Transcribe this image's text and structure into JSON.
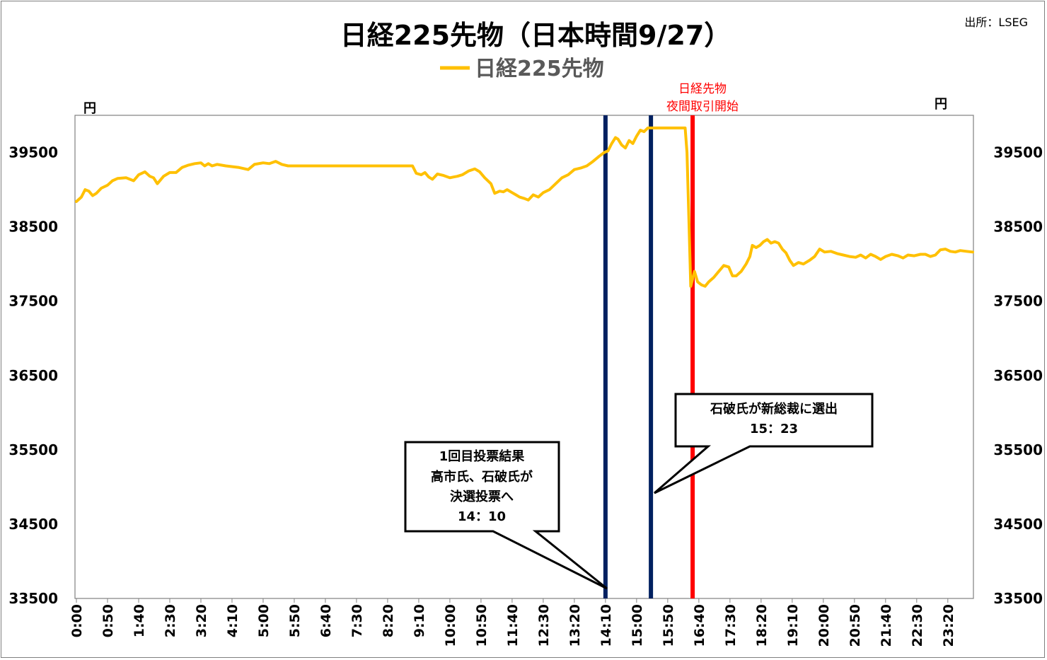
{
  "source": "出所：LSEG",
  "chart_data": {
    "type": "line",
    "title": "日経225先物（日本時間9/27）",
    "legend": [
      "日経225先物"
    ],
    "legend_position": "top",
    "y_unit_left": "円",
    "y_unit_right": "円",
    "ylim": [
      33500,
      40000
    ],
    "yticks": [
      33500,
      34500,
      35500,
      36500,
      37500,
      38500,
      39500
    ],
    "xlim": [
      0,
      1440
    ],
    "xticks": [
      "0:00",
      "0:50",
      "1:40",
      "2:30",
      "3:20",
      "4:10",
      "5:00",
      "5:50",
      "6:40",
      "7:30",
      "8:20",
      "9:10",
      "10:00",
      "10:50",
      "11:40",
      "12:30",
      "13:20",
      "14:10",
      "15:00",
      "15:50",
      "16:40",
      "17:30",
      "18:20",
      "19:10",
      "20:00",
      "20:50",
      "21:40",
      "22:30",
      "23:20"
    ],
    "grid": false,
    "series": [
      {
        "name": "日経225先物",
        "color": "#ffc000",
        "x_unit": "minutes since 0:00",
        "points": [
          [
            0,
            38840
          ],
          [
            8,
            38900
          ],
          [
            14,
            39000
          ],
          [
            20,
            38980
          ],
          [
            26,
            38920
          ],
          [
            32,
            38950
          ],
          [
            40,
            39020
          ],
          [
            50,
            39060
          ],
          [
            58,
            39120
          ],
          [
            66,
            39150
          ],
          [
            80,
            39160
          ],
          [
            92,
            39120
          ],
          [
            100,
            39200
          ],
          [
            110,
            39240
          ],
          [
            118,
            39180
          ],
          [
            124,
            39160
          ],
          [
            130,
            39080
          ],
          [
            140,
            39180
          ],
          [
            150,
            39230
          ],
          [
            160,
            39230
          ],
          [
            170,
            39300
          ],
          [
            180,
            39330
          ],
          [
            190,
            39350
          ],
          [
            200,
            39360
          ],
          [
            206,
            39320
          ],
          [
            212,
            39350
          ],
          [
            218,
            39320
          ],
          [
            226,
            39340
          ],
          [
            240,
            39320
          ],
          [
            260,
            39300
          ],
          [
            276,
            39270
          ],
          [
            286,
            39340
          ],
          [
            300,
            39360
          ],
          [
            310,
            39350
          ],
          [
            320,
            39380
          ],
          [
            330,
            39340
          ],
          [
            340,
            39320
          ],
          [
            360,
            39320
          ],
          [
            400,
            39320
          ],
          [
            440,
            39320
          ],
          [
            480,
            39320
          ],
          [
            520,
            39320
          ],
          [
            540,
            39320
          ],
          [
            546,
            39220
          ],
          [
            554,
            39200
          ],
          [
            560,
            39230
          ],
          [
            566,
            39170
          ],
          [
            572,
            39140
          ],
          [
            580,
            39210
          ],
          [
            590,
            39190
          ],
          [
            600,
            39160
          ],
          [
            606,
            39170
          ],
          [
            612,
            39180
          ],
          [
            620,
            39200
          ],
          [
            630,
            39250
          ],
          [
            640,
            39280
          ],
          [
            648,
            39240
          ],
          [
            656,
            39160
          ],
          [
            666,
            39080
          ],
          [
            672,
            38950
          ],
          [
            680,
            38980
          ],
          [
            686,
            38970
          ],
          [
            692,
            39000
          ],
          [
            700,
            38960
          ],
          [
            706,
            38930
          ],
          [
            712,
            38900
          ],
          [
            720,
            38880
          ],
          [
            726,
            38860
          ],
          [
            734,
            38930
          ],
          [
            742,
            38900
          ],
          [
            750,
            38960
          ],
          [
            760,
            39000
          ],
          [
            770,
            39080
          ],
          [
            780,
            39160
          ],
          [
            790,
            39200
          ],
          [
            800,
            39270
          ],
          [
            810,
            39290
          ],
          [
            820,
            39320
          ],
          [
            830,
            39380
          ],
          [
            840,
            39450
          ],
          [
            848,
            39500
          ],
          [
            854,
            39520
          ],
          [
            860,
            39620
          ],
          [
            866,
            39700
          ],
          [
            870,
            39680
          ],
          [
            876,
            39600
          ],
          [
            882,
            39560
          ],
          [
            888,
            39660
          ],
          [
            894,
            39620
          ],
          [
            900,
            39720
          ],
          [
            906,
            39800
          ],
          [
            912,
            39780
          ],
          [
            918,
            39830
          ],
          [
            925,
            39830
          ],
          [
            940,
            39830
          ],
          [
            960,
            39830
          ],
          [
            978,
            39830
          ],
          [
            981,
            39500
          ],
          [
            984,
            38600
          ],
          [
            987,
            37700
          ],
          [
            993,
            37900
          ],
          [
            998,
            37760
          ],
          [
            1004,
            37720
          ],
          [
            1010,
            37700
          ],
          [
            1016,
            37760
          ],
          [
            1024,
            37820
          ],
          [
            1032,
            37900
          ],
          [
            1040,
            37980
          ],
          [
            1048,
            37960
          ],
          [
            1054,
            37840
          ],
          [
            1060,
            37840
          ],
          [
            1068,
            37900
          ],
          [
            1076,
            38000
          ],
          [
            1082,
            38100
          ],
          [
            1086,
            38250
          ],
          [
            1092,
            38220
          ],
          [
            1098,
            38250
          ],
          [
            1104,
            38300
          ],
          [
            1110,
            38330
          ],
          [
            1116,
            38280
          ],
          [
            1122,
            38300
          ],
          [
            1128,
            38280
          ],
          [
            1134,
            38200
          ],
          [
            1140,
            38150
          ],
          [
            1146,
            38050
          ],
          [
            1152,
            37980
          ],
          [
            1160,
            38020
          ],
          [
            1168,
            38000
          ],
          [
            1178,
            38050
          ],
          [
            1186,
            38100
          ],
          [
            1194,
            38200
          ],
          [
            1202,
            38160
          ],
          [
            1212,
            38170
          ],
          [
            1222,
            38140
          ],
          [
            1232,
            38120
          ],
          [
            1242,
            38100
          ],
          [
            1252,
            38090
          ],
          [
            1260,
            38120
          ],
          [
            1268,
            38080
          ],
          [
            1276,
            38130
          ],
          [
            1284,
            38100
          ],
          [
            1292,
            38060
          ],
          [
            1300,
            38100
          ],
          [
            1310,
            38130
          ],
          [
            1320,
            38110
          ],
          [
            1328,
            38080
          ],
          [
            1336,
            38120
          ],
          [
            1346,
            38110
          ],
          [
            1356,
            38130
          ],
          [
            1364,
            38130
          ],
          [
            1372,
            38100
          ],
          [
            1380,
            38120
          ],
          [
            1388,
            38190
          ],
          [
            1396,
            38200
          ],
          [
            1404,
            38170
          ],
          [
            1412,
            38160
          ],
          [
            1420,
            38180
          ],
          [
            1430,
            38170
          ],
          [
            1440,
            38160
          ]
        ]
      }
    ],
    "vertical_markers": [
      {
        "time": "14:10",
        "minute": 850,
        "color": "#002060"
      },
      {
        "time": "15:23",
        "minute": 923,
        "color": "#002060"
      },
      {
        "time": "16:30",
        "minute": 990,
        "color": "#ff0000",
        "label": [
          "日経先物",
          "夜間取引開始"
        ]
      }
    ],
    "annotations": [
      {
        "text": [
          "1回目投票結果",
          "高市氏、石破氏が",
          "決選投票へ",
          "14：10"
        ],
        "points_to_minute": 850,
        "points_to_value": 33580
      },
      {
        "text": [
          "石破氏が新総裁に選出",
          "15：23"
        ],
        "points_to_minute": 923,
        "points_to_value": 34930
      }
    ]
  }
}
